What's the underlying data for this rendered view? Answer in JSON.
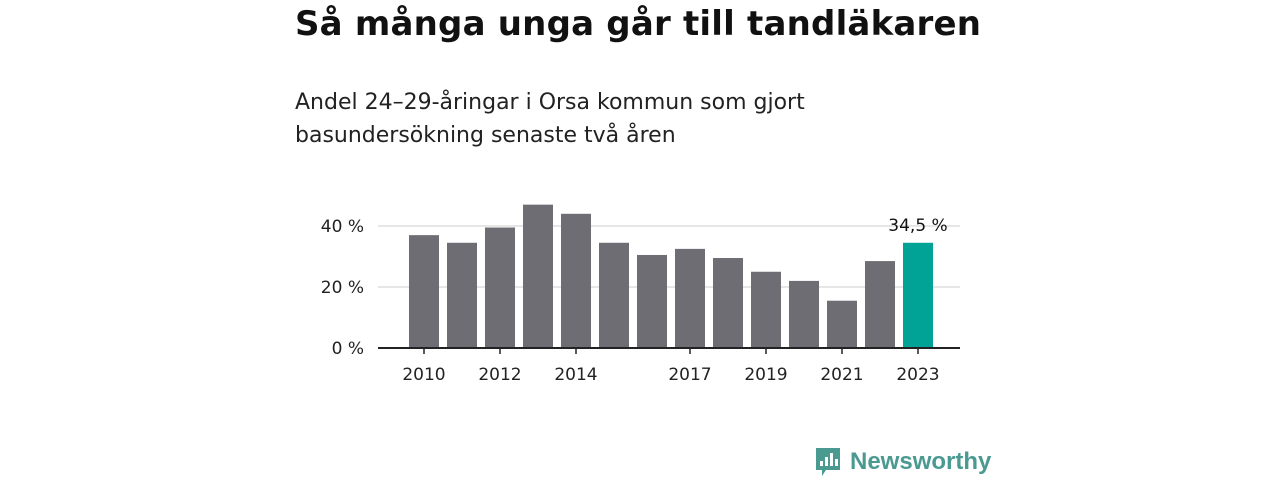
{
  "header": {
    "title": "Så många unga går till tandläkaren",
    "subtitle": "Andel 24–29-åringar i Orsa kommun som gjort basundersökning senaste två åren"
  },
  "chart_data": {
    "type": "bar",
    "categories": [
      "2010",
      "2011",
      "2012",
      "2013",
      "2014",
      "2015",
      "2016",
      "2017",
      "2018",
      "2019",
      "2020",
      "2021",
      "2022",
      "2023"
    ],
    "x_tick_labels": [
      "2010",
      "",
      "2012",
      "",
      "2014",
      "",
      "",
      "2017",
      "",
      "2019",
      "",
      "2021",
      "",
      "2023"
    ],
    "values": [
      37,
      34.5,
      39.5,
      47,
      44,
      34.5,
      30.5,
      32.5,
      29.5,
      25,
      22,
      15.5,
      28.5,
      34.5
    ],
    "highlight_index": 13,
    "highlight_label": "34,5 %",
    "yticks": [
      0,
      20,
      40
    ],
    "ytick_labels": [
      "0 %",
      "20 %",
      "40 %"
    ],
    "ylim": [
      0,
      50
    ],
    "grid": true,
    "xlabel": "",
    "ylabel": "",
    "colors": {
      "bar": "#6e6d73",
      "highlight": "#00a396",
      "grid": "#dddddd",
      "axis": "#222222"
    }
  },
  "footer": {
    "brand_name": "Newsworthy",
    "brand_icon": "newsworthy-logo-icon",
    "brand_color": "#4a9a92"
  }
}
